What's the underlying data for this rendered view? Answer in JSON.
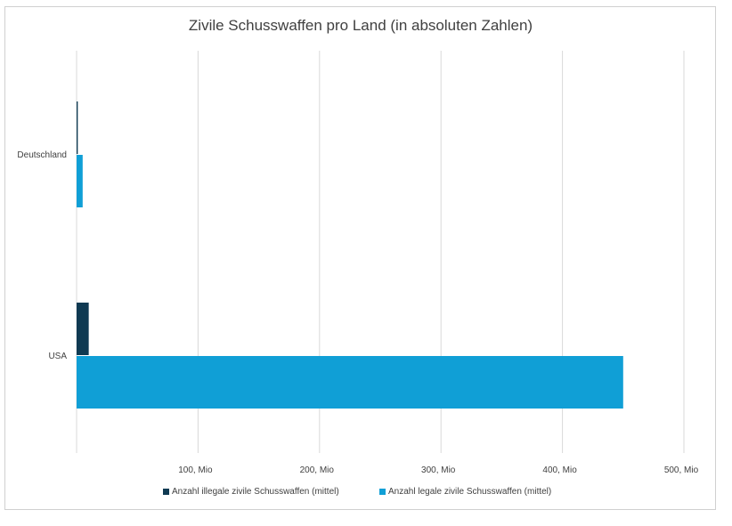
{
  "chart_data": {
    "type": "bar",
    "orientation": "horizontal",
    "title": "Zivile Schusswaffen pro Land (in absoluten Zahlen)",
    "categories": [
      "Deutschland",
      "USA"
    ],
    "series": [
      {
        "name": "Anzahl illegale zivile Schusswaffen (mittel)",
        "color": "#0f3a52",
        "values": [
          1,
          10
        ]
      },
      {
        "name": "Anzahl legale zivile Schusswaffen (mittel)",
        "color": "#109fd6",
        "values": [
          5,
          450
        ]
      }
    ],
    "xlim": [
      0,
      500
    ],
    "x_ticks": [
      100,
      200,
      300,
      400,
      500
    ],
    "x_tick_labels": [
      "100, Mio",
      "200, Mio",
      "300, Mio",
      "400, Mio",
      "500, Mio"
    ],
    "grid": "vertical",
    "legend": "bottom"
  }
}
